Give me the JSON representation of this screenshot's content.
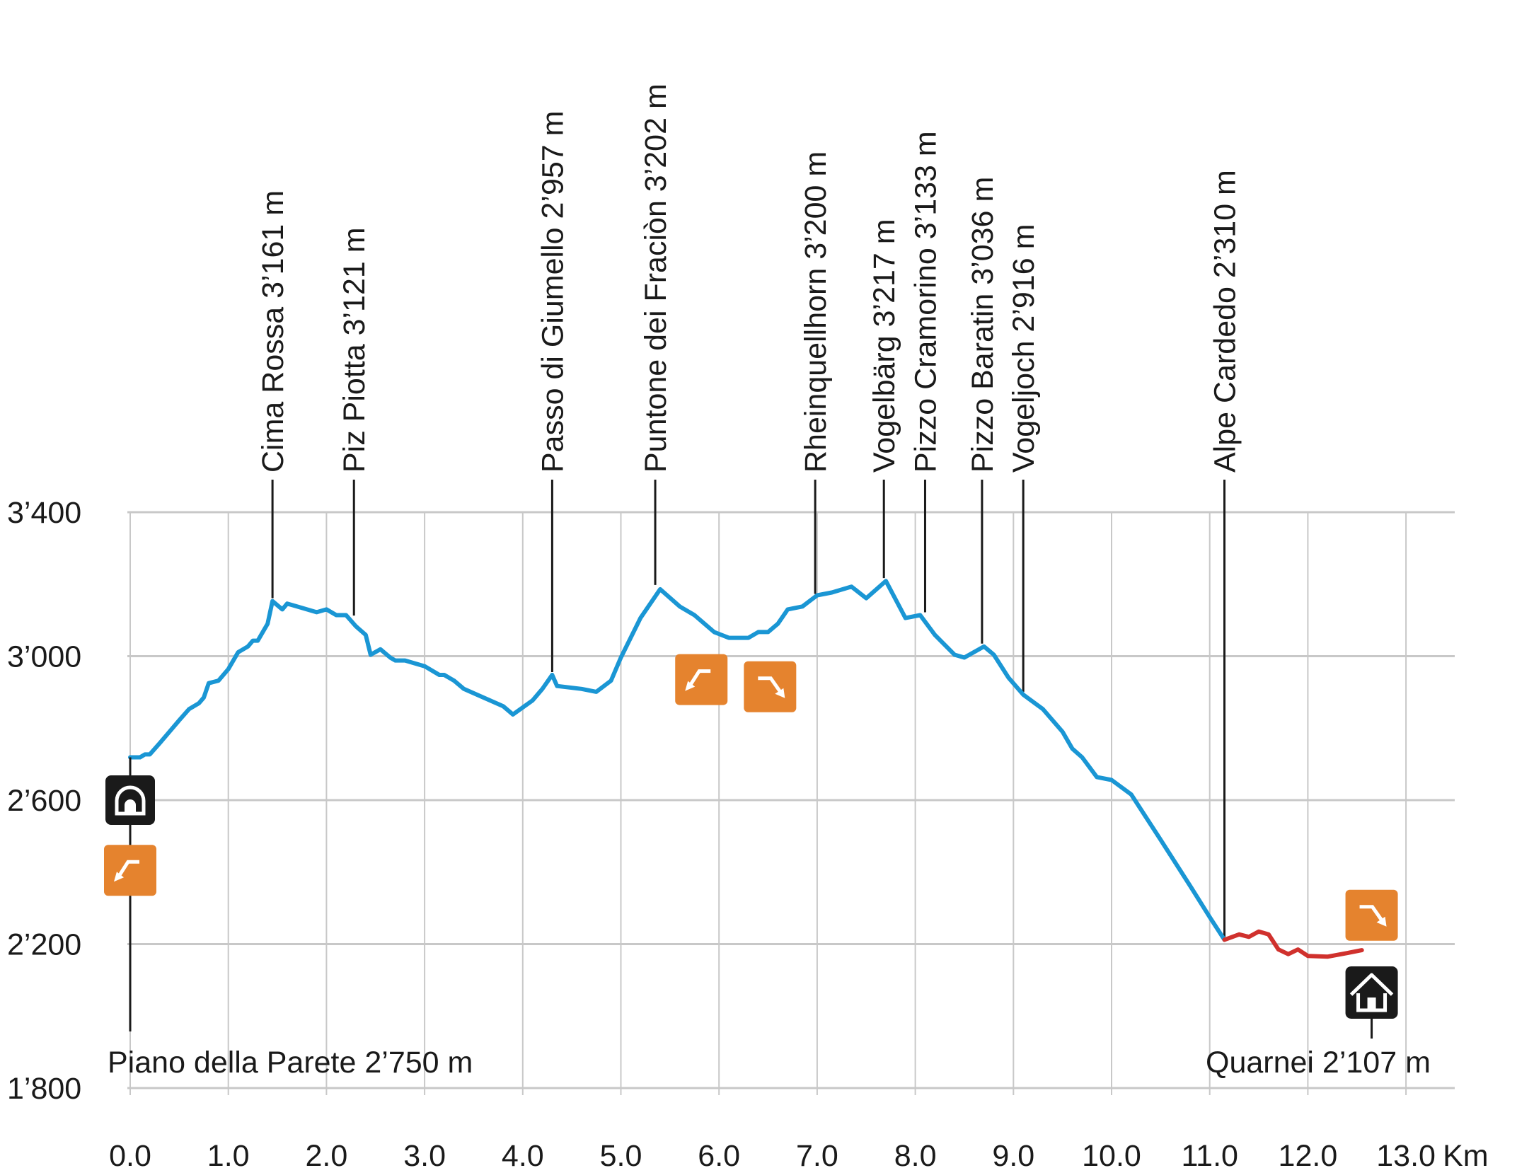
{
  "chart_data": {
    "type": "line",
    "x_unit": "Km",
    "xlim": [
      0,
      13.5
    ],
    "ylim": [
      1800,
      3400
    ],
    "x_ticks": [
      "0.0",
      "1.0",
      "2.0",
      "3.0",
      "4.0",
      "5.0",
      "6.0",
      "7.0",
      "8.0",
      "9.0",
      "10.0",
      "11.0",
      "12.0",
      "13.0"
    ],
    "y_ticks": [
      "1’800",
      "2’200",
      "2’600",
      "3’000",
      "3’400"
    ],
    "grid": true,
    "colors": {
      "main_route": "#1a96d4",
      "final_segment": "#d0312d",
      "grid": "#c8c8c8",
      "badge": "#e5832e",
      "marker": "#1a1a1a"
    },
    "series": [
      {
        "color": "#1a96d4",
        "points": [
          [
            0.0,
            2719
          ],
          [
            0.1,
            2719
          ],
          [
            0.15,
            2727
          ],
          [
            0.2,
            2727
          ],
          [
            0.3,
            2758
          ],
          [
            0.4,
            2790
          ],
          [
            0.5,
            2822
          ],
          [
            0.6,
            2853
          ],
          [
            0.7,
            2869
          ],
          [
            0.75,
            2885
          ],
          [
            0.8,
            2925
          ],
          [
            0.9,
            2932
          ],
          [
            1.0,
            2964
          ],
          [
            1.1,
            3011
          ],
          [
            1.2,
            3027
          ],
          [
            1.25,
            3043
          ],
          [
            1.3,
            3043
          ],
          [
            1.4,
            3090
          ],
          [
            1.45,
            3153
          ],
          [
            1.55,
            3130
          ],
          [
            1.6,
            3146
          ],
          [
            1.7,
            3138
          ],
          [
            1.9,
            3122
          ],
          [
            2.0,
            3130
          ],
          [
            2.1,
            3114
          ],
          [
            2.2,
            3114
          ],
          [
            2.3,
            3083
          ],
          [
            2.4,
            3059
          ],
          [
            2.45,
            3004
          ],
          [
            2.55,
            3019
          ],
          [
            2.65,
            2996
          ],
          [
            2.7,
            2988
          ],
          [
            2.8,
            2988
          ],
          [
            3.0,
            2972
          ],
          [
            3.15,
            2948
          ],
          [
            3.2,
            2948
          ],
          [
            3.3,
            2932
          ],
          [
            3.4,
            2909
          ],
          [
            3.6,
            2885
          ],
          [
            3.8,
            2861
          ],
          [
            3.9,
            2838
          ],
          [
            4.1,
            2877
          ],
          [
            4.2,
            2909
          ],
          [
            4.3,
            2948
          ],
          [
            4.35,
            2917
          ],
          [
            4.6,
            2909
          ],
          [
            4.75,
            2901
          ],
          [
            4.9,
            2932
          ],
          [
            5.0,
            2996
          ],
          [
            5.2,
            3106
          ],
          [
            5.4,
            3186
          ],
          [
            5.6,
            3138
          ],
          [
            5.75,
            3114
          ],
          [
            5.95,
            3067
          ],
          [
            6.1,
            3051
          ],
          [
            6.3,
            3051
          ],
          [
            6.4,
            3067
          ],
          [
            6.5,
            3067
          ],
          [
            6.6,
            3090
          ],
          [
            6.7,
            3130
          ],
          [
            6.85,
            3138
          ],
          [
            7.0,
            3169
          ],
          [
            7.15,
            3177
          ],
          [
            7.35,
            3193
          ],
          [
            7.5,
            3161
          ],
          [
            7.7,
            3209
          ],
          [
            7.9,
            3106
          ],
          [
            8.05,
            3114
          ],
          [
            8.2,
            3059
          ],
          [
            8.4,
            3004
          ],
          [
            8.5,
            2996
          ],
          [
            8.7,
            3027
          ],
          [
            8.8,
            3004
          ],
          [
            8.95,
            2940
          ],
          [
            9.1,
            2893
          ],
          [
            9.3,
            2853
          ],
          [
            9.5,
            2790
          ],
          [
            9.6,
            2743
          ],
          [
            9.7,
            2719
          ],
          [
            9.85,
            2664
          ],
          [
            10.0,
            2656
          ],
          [
            10.2,
            2616
          ],
          [
            10.5,
            2490
          ],
          [
            10.8,
            2362
          ],
          [
            11.0,
            2275
          ],
          [
            11.15,
            2212
          ]
        ]
      },
      {
        "color": "#d0312d",
        "points": [
          [
            11.15,
            2212
          ],
          [
            11.3,
            2227
          ],
          [
            11.4,
            2220
          ],
          [
            11.5,
            2235
          ],
          [
            11.6,
            2227
          ],
          [
            11.7,
            2185
          ],
          [
            11.8,
            2172
          ],
          [
            11.9,
            2185
          ],
          [
            12.0,
            2167
          ],
          [
            12.2,
            2165
          ],
          [
            12.4,
            2175
          ],
          [
            12.55,
            2183
          ]
        ]
      }
    ],
    "peak_labels": [
      {
        "label": "Cima Rossa 3’161 m",
        "x": 1.45,
        "y": 3153
      },
      {
        "label": "Piz Piotta 3’121 m",
        "x": 2.28,
        "y": 3105
      },
      {
        "label": "Passo di Giumello 2’957 m",
        "x": 4.3,
        "y": 2948
      },
      {
        "label": "Puntone dei Fraciòn 3’202 m",
        "x": 5.35,
        "y": 3190
      },
      {
        "label": "Rheinquellhorn 3’200 m",
        "x": 6.98,
        "y": 3165
      },
      {
        "label": "Vogelbärg 3’217 m",
        "x": 7.68,
        "y": 3209
      },
      {
        "label": "Pizzo Cramorino 3’133 m",
        "x": 8.1,
        "y": 3114
      },
      {
        "label": "Pizzo Baratin 3’036 m",
        "x": 8.68,
        "y": 3027
      },
      {
        "label": "Vogeljoch 2’916 m",
        "x": 9.1,
        "y": 2893
      },
      {
        "label": "Alpe Cardedo 2’310 m",
        "x": 11.15,
        "y": 2212
      }
    ],
    "start": {
      "label": "Piano della Parete 2’750 m",
      "x": 0.0,
      "icon": "shelter-hut-icon"
    },
    "end": {
      "label": "Quarnei 2’107 m",
      "x": 12.65,
      "icon": "house-icon"
    },
    "direction_badges": [
      {
        "icon": "turn-left-arrow-icon",
        "x": 0.0,
        "y": 2405
      },
      {
        "icon": "turn-left-arrow-icon",
        "x": 5.82,
        "y": 2935
      },
      {
        "icon": "turn-right-down-arrow-icon",
        "x": 6.52,
        "y": 2915
      },
      {
        "icon": "turn-right-down-arrow-icon",
        "x": 12.65,
        "y": 2280
      }
    ]
  }
}
